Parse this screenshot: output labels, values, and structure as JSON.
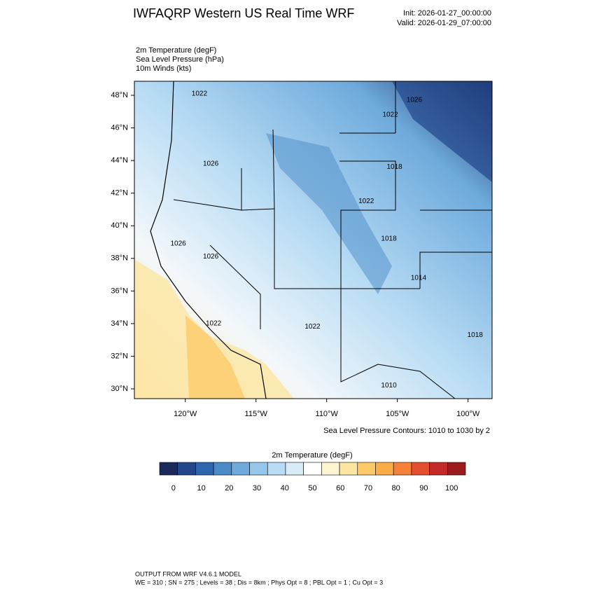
{
  "title": "IWFAQRP Western US Real Time WRF",
  "init": "Init: 2026-01-27_00:00:00",
  "valid": "Valid: 2026-01-29_07:00:00",
  "fields": [
    "2m Temperature   (degF)",
    "Sea Level Pressure   (hPa)",
    "10m Winds   (kts)"
  ],
  "map": {
    "lonlim": [
      -123.6,
      -98.3
    ],
    "latlim": [
      29.4,
      48.86
    ],
    "lat_ticks": [
      {
        "value": 30,
        "label": "30°N"
      },
      {
        "value": 32,
        "label": "32°N"
      },
      {
        "value": 34,
        "label": "34°N"
      },
      {
        "value": 36,
        "label": "36°N"
      },
      {
        "value": 38,
        "label": "38°N"
      },
      {
        "value": 40,
        "label": "40°N"
      },
      {
        "value": 42,
        "label": "42°N"
      },
      {
        "value": 44,
        "label": "44°N"
      },
      {
        "value": 46,
        "label": "46°N"
      },
      {
        "value": 48,
        "label": "48°N"
      }
    ],
    "lon_ticks": [
      {
        "value": -120,
        "label": "120°W"
      },
      {
        "value": -115,
        "label": "115°W"
      },
      {
        "value": -110,
        "label": "110°W"
      },
      {
        "value": -105,
        "label": "105°W"
      },
      {
        "value": -100,
        "label": "100°W"
      }
    ],
    "isobar_labels": [
      {
        "text": "1022",
        "lon": -119.0,
        "lat": 48.1
      },
      {
        "text": "1026",
        "lon": -103.8,
        "lat": 47.7
      },
      {
        "text": "1022",
        "lon": -105.5,
        "lat": 46.8
      },
      {
        "text": "1026",
        "lon": -118.2,
        "lat": 43.8
      },
      {
        "text": "1018",
        "lon": -105.2,
        "lat": 43.6
      },
      {
        "text": "1022",
        "lon": -107.2,
        "lat": 41.5
      },
      {
        "text": "1026",
        "lon": -120.5,
        "lat": 38.9
      },
      {
        "text": "1026",
        "lon": -118.2,
        "lat": 38.1
      },
      {
        "text": "1018",
        "lon": -105.6,
        "lat": 39.2
      },
      {
        "text": "1014",
        "lon": -103.5,
        "lat": 36.8
      },
      {
        "text": "1022",
        "lon": -111.0,
        "lat": 33.8
      },
      {
        "text": "1022",
        "lon": -118.0,
        "lat": 34.0
      },
      {
        "text": "1018",
        "lon": -99.5,
        "lat": 33.3
      },
      {
        "text": "1010",
        "lon": -105.6,
        "lat": 30.2
      }
    ]
  },
  "contour_note": "Sea Level Pressure Contours: 1010 to 1030 by 2",
  "colorbar": {
    "title": "2m Temperature  (degF)",
    "clim": [
      -5,
      105
    ],
    "colors": [
      "#1b2a5b",
      "#22468a",
      "#2e66ad",
      "#4b8bc8",
      "#6eaadc",
      "#95c7ec",
      "#b8dcf4",
      "#d8ecf8",
      "#ffffff",
      "#fef6d2",
      "#fde6a2",
      "#fdca6a",
      "#fbae48",
      "#f6823a",
      "#e4502f",
      "#c42a28",
      "#9e1b1d"
    ],
    "ticks": [
      0,
      10,
      20,
      30,
      40,
      50,
      60,
      70,
      80,
      90,
      100
    ]
  },
  "footer": [
    "OUTPUT FROM WRF V4.6.1 MODEL",
    "WE = 310 ; SN = 275 ; Levels = 38 ; Dis = 8km ; Phys Opt = 8 ; PBL Opt = 1 ; Cu Opt = 3"
  ]
}
